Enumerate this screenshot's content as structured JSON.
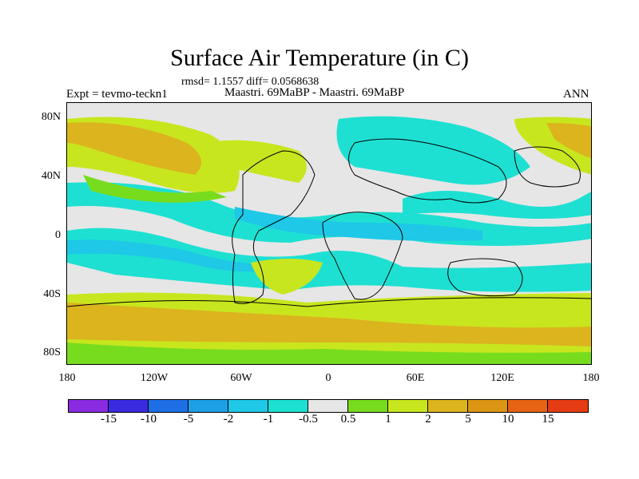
{
  "title": "Surface Air Temperature (in C)",
  "stats": "rmsd= 1.1557 diff= 0.0568638",
  "experiment": "Expt = tevmo-teckn1",
  "subtitle": "Maastri.  69MaBP - Maastri.  69MaBP",
  "season": "ANN",
  "map": {
    "lat_ticks": [
      "80N",
      "40N",
      "0",
      "40S",
      "80S"
    ],
    "lon_ticks": [
      "180",
      "120W",
      "60W",
      "0",
      "60E",
      "120E",
      "180"
    ]
  },
  "colorbar": {
    "colors": [
      "#8a2be2",
      "#3a2be0",
      "#1e6fe6",
      "#1ea0e6",
      "#1ec8e6",
      "#1ee0d2",
      "#e6e6e6",
      "#78dc1e",
      "#c8e61e",
      "#dcb41e",
      "#dc9614",
      "#e66414",
      "#e63c14"
    ],
    "labels": [
      "-15",
      "-10",
      "-5",
      "-2",
      "-1",
      "-0.5",
      "0.5",
      "1",
      "2",
      "5",
      "10",
      "15"
    ]
  },
  "colors": {
    "neutral": "#e6e6e6",
    "cool": "#1ee0d2",
    "cooler": "#1ec8e6",
    "warm_green": "#78dc1e",
    "warm_yellow": "#c8e61e",
    "warm_orange": "#dcb41e"
  }
}
